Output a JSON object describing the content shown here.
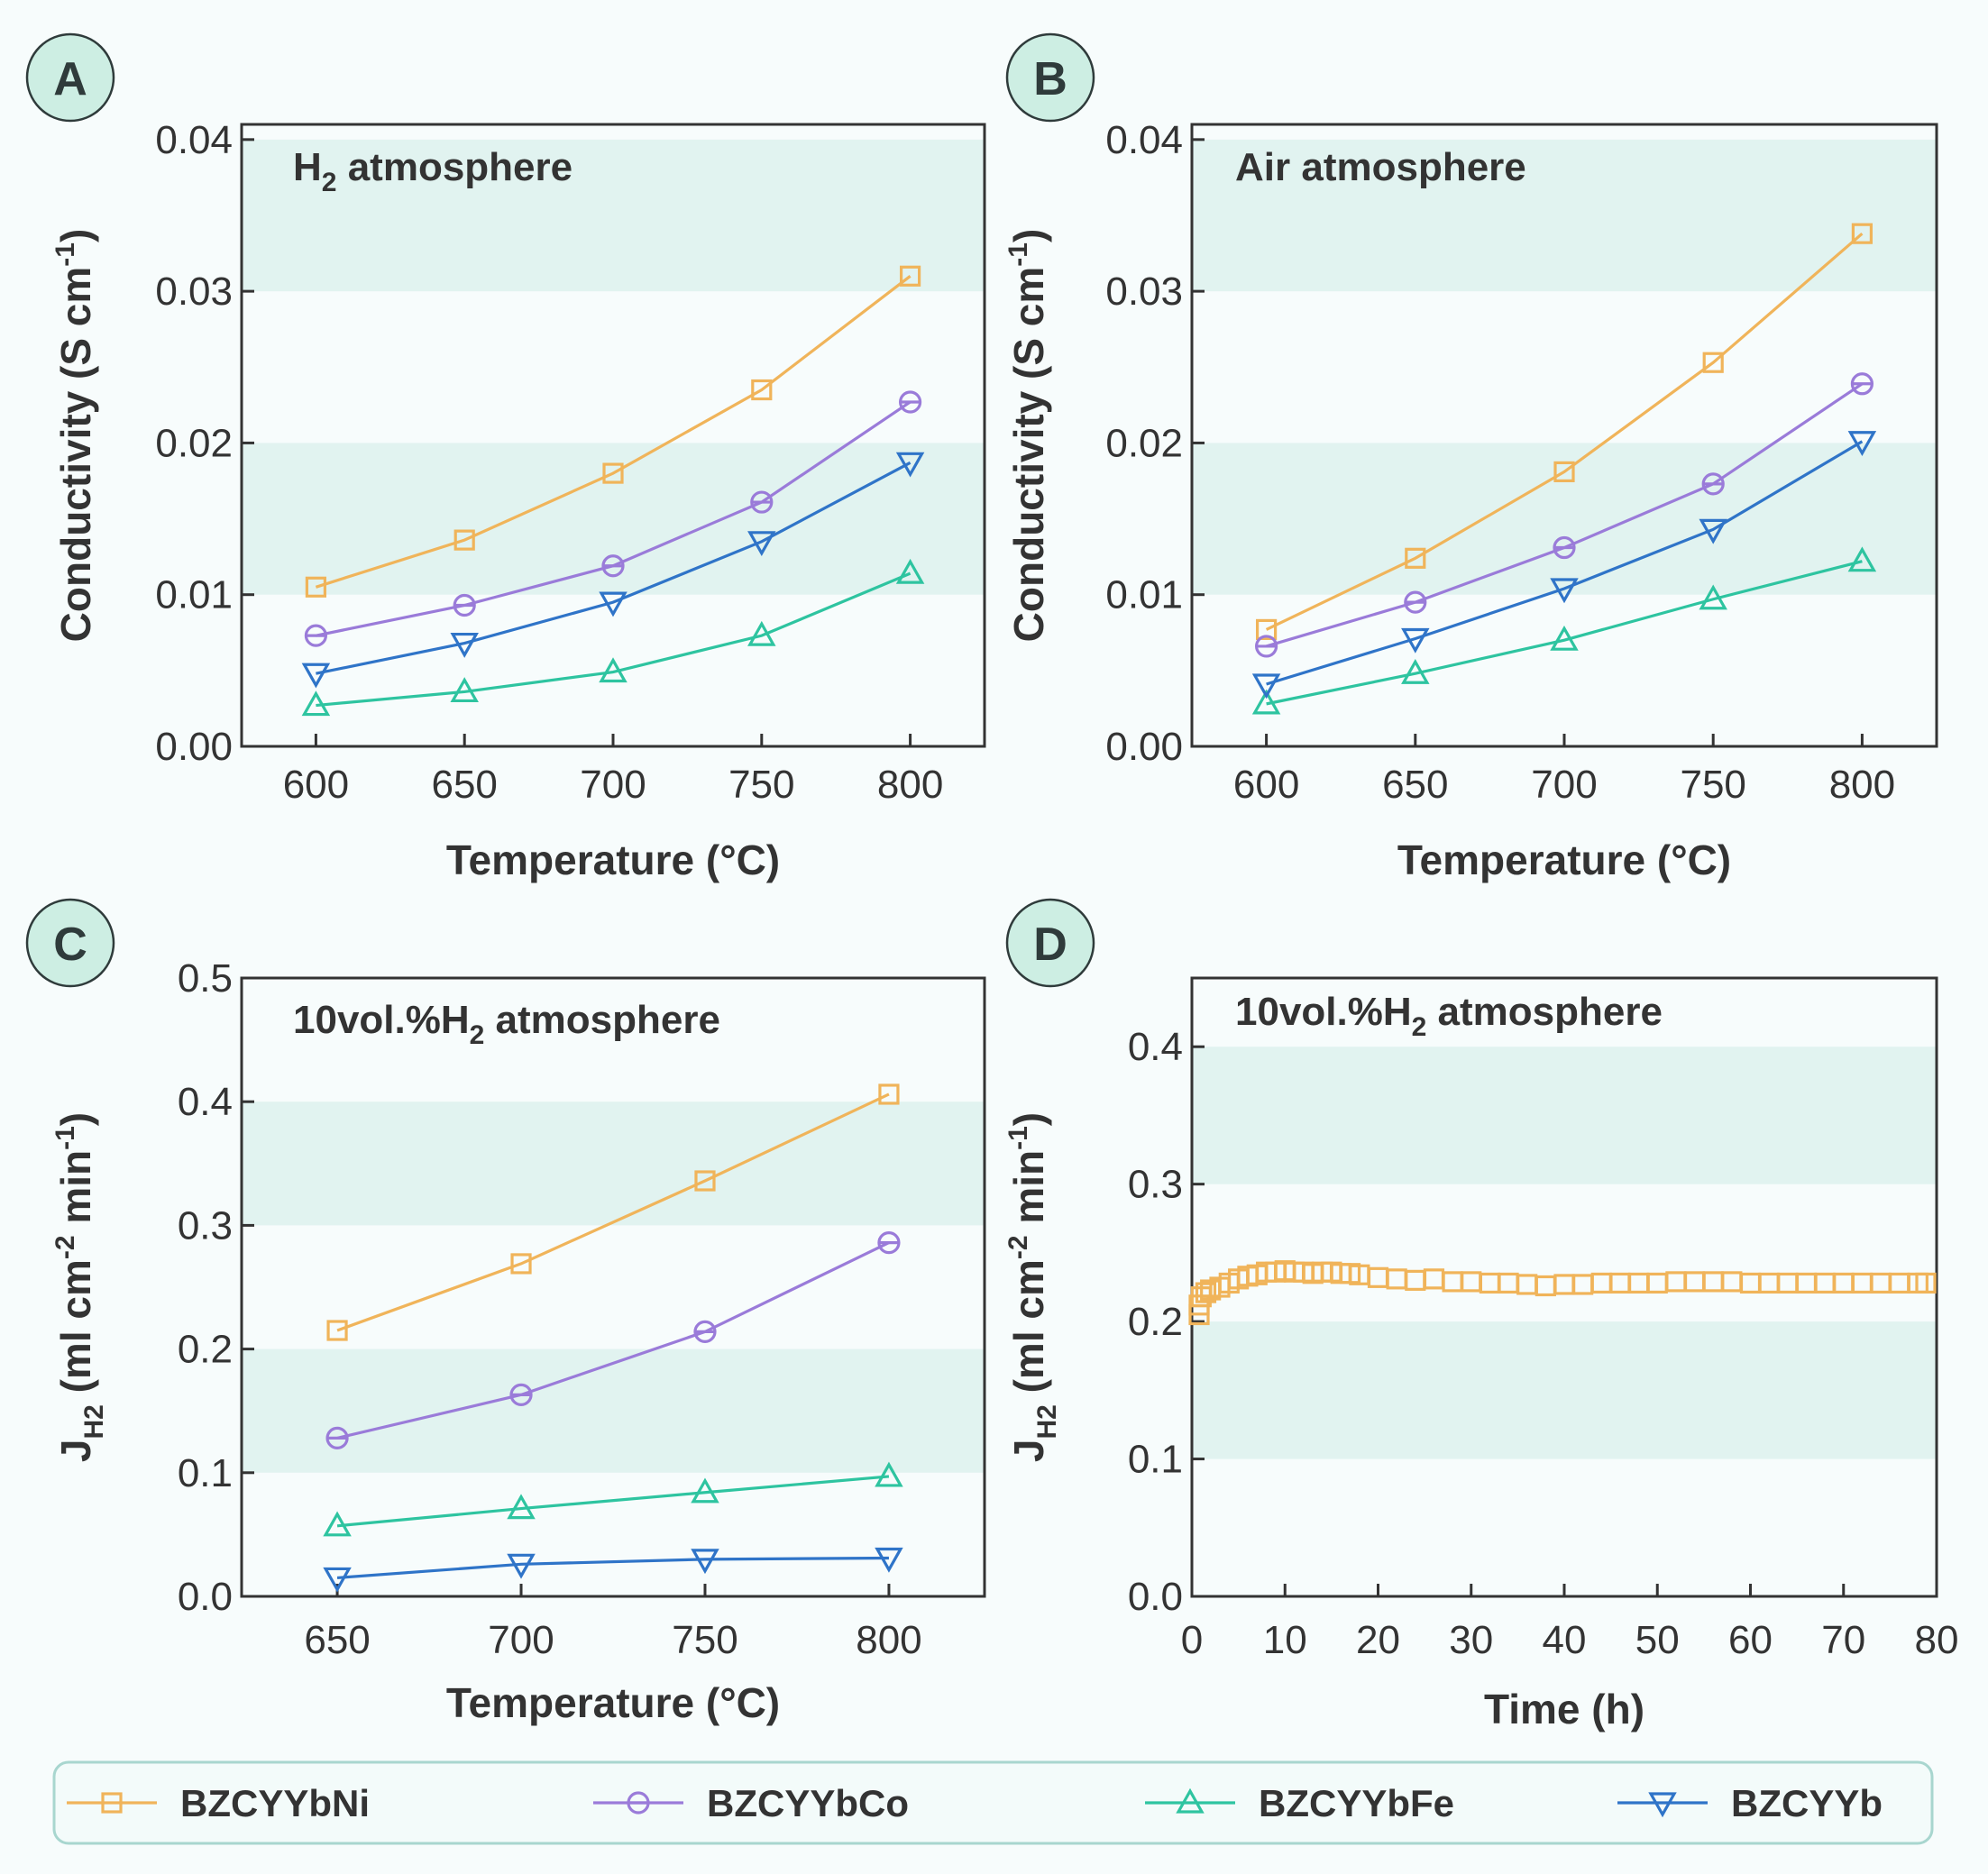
{
  "series_styles": [
    {
      "name": "BZCYYbNi",
      "color": "#f0b45a",
      "marker": "square"
    },
    {
      "name": "BZCYYbCo",
      "color": "#9a7bd9",
      "marker": "circle"
    },
    {
      "name": "BZCYYbFe",
      "color": "#2ec4a0",
      "marker": "triangle-up"
    },
    {
      "name": "BZCYYb",
      "color": "#2f74c8",
      "marker": "triangle-down"
    }
  ],
  "legend": {
    "entries": [
      "BZCYYbNi",
      "BZCYYbCo",
      "BZCYYbFe",
      "BZCYYb"
    ]
  },
  "band_color": "#e1f3f0",
  "chart_data": [
    {
      "panel": "A",
      "type": "line",
      "annotation": {
        "main": "H",
        "sub": "2",
        "tail": " atmosphere"
      },
      "xlabel": "Temperature (°C)",
      "ylabel": {
        "main": "Conductivity (S cm",
        "sup": "-1",
        "tail": ")"
      },
      "x": [
        600,
        650,
        700,
        750,
        800
      ],
      "xticks": [
        "600",
        "650",
        "700",
        "750",
        "800"
      ],
      "yticks": [
        "0.00",
        "0.01",
        "0.02",
        "0.03",
        "0.04"
      ],
      "xlim": [
        575,
        825
      ],
      "ylim": [
        0,
        0.041
      ],
      "shaded_bands": [
        [
          0.01,
          0.02
        ],
        [
          0.03,
          0.04
        ]
      ],
      "series": [
        {
          "name": "BZCYYbNi",
          "values": [
            0.0105,
            0.0136,
            0.018,
            0.0235,
            0.031
          ]
        },
        {
          "name": "BZCYYbCo",
          "values": [
            0.0073,
            0.0093,
            0.0119,
            0.0161,
            0.0227
          ]
        },
        {
          "name": "BZCYYbFe",
          "values": [
            0.0027,
            0.0036,
            0.0049,
            0.0073,
            0.0114
          ]
        },
        {
          "name": "BZCYYb",
          "values": [
            0.0048,
            0.0068,
            0.0095,
            0.0135,
            0.0187
          ]
        }
      ]
    },
    {
      "panel": "B",
      "type": "line",
      "annotation": {
        "main": "Air atmosphere",
        "sub": "",
        "tail": ""
      },
      "xlabel": "Temperature (°C)",
      "ylabel": {
        "main": "Conductivity (S cm",
        "sup": "-1",
        "tail": ")"
      },
      "x": [
        600,
        650,
        700,
        750,
        800
      ],
      "xticks": [
        "600",
        "650",
        "700",
        "750",
        "800"
      ],
      "yticks": [
        "0.00",
        "0.01",
        "0.02",
        "0.03",
        "0.04"
      ],
      "xlim": [
        575,
        825
      ],
      "ylim": [
        0,
        0.041
      ],
      "shaded_bands": [
        [
          0.01,
          0.02
        ],
        [
          0.03,
          0.04
        ]
      ],
      "series": [
        {
          "name": "BZCYYbNi",
          "values": [
            0.0077,
            0.0124,
            0.0181,
            0.0253,
            0.0338
          ]
        },
        {
          "name": "BZCYYbCo",
          "values": [
            0.0066,
            0.0095,
            0.0131,
            0.0173,
            0.0239
          ]
        },
        {
          "name": "BZCYYbFe",
          "values": [
            0.0028,
            0.0048,
            0.007,
            0.0097,
            0.0122
          ]
        },
        {
          "name": "BZCYYb",
          "values": [
            0.0041,
            0.0071,
            0.0104,
            0.0143,
            0.0201
          ]
        }
      ]
    },
    {
      "panel": "C",
      "type": "line",
      "annotation": {
        "main": "10vol.%H",
        "sub": "2",
        "tail": " atmosphere"
      },
      "xlabel": "Temperature (°C)",
      "ylabel": {
        "main": "J",
        "sub": "H2",
        "tail": " (ml cm",
        "sup": "-2",
        "tail2": " min",
        "sup2": "-1",
        "tail3": ")"
      },
      "x": [
        650,
        700,
        750,
        800
      ],
      "xticks": [
        "650",
        "700",
        "750",
        "800"
      ],
      "yticks": [
        "0.0",
        "0.1",
        "0.2",
        "0.3",
        "0.4",
        "0.5"
      ],
      "xlim": [
        624,
        826
      ],
      "ylim": [
        0,
        0.5
      ],
      "shaded_bands": [
        [
          0.1,
          0.2
        ],
        [
          0.3,
          0.4
        ]
      ],
      "series": [
        {
          "name": "BZCYYbNi",
          "values": [
            0.215,
            0.269,
            0.336,
            0.406
          ]
        },
        {
          "name": "BZCYYbCo",
          "values": [
            0.128,
            0.163,
            0.214,
            0.286
          ]
        },
        {
          "name": "BZCYYbFe",
          "values": [
            0.057,
            0.071,
            0.084,
            0.097
          ]
        },
        {
          "name": "BZCYYb",
          "values": [
            0.015,
            0.026,
            0.03,
            0.031
          ]
        }
      ]
    },
    {
      "panel": "D",
      "type": "scatter",
      "annotation": {
        "main": "10vol.%H",
        "sub": "2",
        "tail": " atmosphere"
      },
      "xlabel": "Time (h)",
      "ylabel": {
        "main": "J",
        "sub": "H2",
        "tail": " (ml cm",
        "sup": "-2",
        "tail2": " min",
        "sup2": "-1",
        "tail3": ")"
      },
      "xticks": [
        "0",
        "10",
        "20",
        "30",
        "40",
        "50",
        "60",
        "70",
        "80"
      ],
      "yticks": [
        "0.0",
        "0.1",
        "0.2",
        "0.3",
        "0.4"
      ],
      "xlim": [
        0,
        80
      ],
      "ylim": [
        0,
        0.45
      ],
      "shaded_bands": [
        [
          0.1,
          0.2
        ],
        [
          0.3,
          0.4
        ]
      ],
      "series": [
        {
          "name": "BZCYYbNi",
          "x": [
            0,
            0.5,
            1,
            1.5,
            2,
            3,
            4,
            5,
            6,
            7,
            8,
            9,
            10,
            11,
            12,
            13,
            14,
            15,
            16,
            17,
            18,
            20,
            22,
            24,
            26,
            28,
            30,
            32,
            34,
            36,
            38,
            40,
            42,
            44,
            46,
            48,
            50,
            52,
            54,
            56,
            58,
            60,
            62,
            64,
            66,
            68,
            70,
            72,
            74,
            76,
            78,
            80
          ],
          "y": [
            0.205,
            0.212,
            0.218,
            0.221,
            0.223,
            0.225,
            0.228,
            0.231,
            0.233,
            0.234,
            0.236,
            0.236,
            0.237,
            0.236,
            0.236,
            0.235,
            0.236,
            0.236,
            0.235,
            0.235,
            0.234,
            0.232,
            0.231,
            0.23,
            0.231,
            0.229,
            0.229,
            0.228,
            0.228,
            0.227,
            0.226,
            0.227,
            0.227,
            0.228,
            0.228,
            0.228,
            0.228,
            0.229,
            0.229,
            0.229,
            0.229,
            0.228,
            0.228,
            0.228,
            0.228,
            0.228,
            0.228,
            0.228,
            0.228,
            0.228,
            0.228,
            0.228
          ]
        }
      ]
    }
  ]
}
